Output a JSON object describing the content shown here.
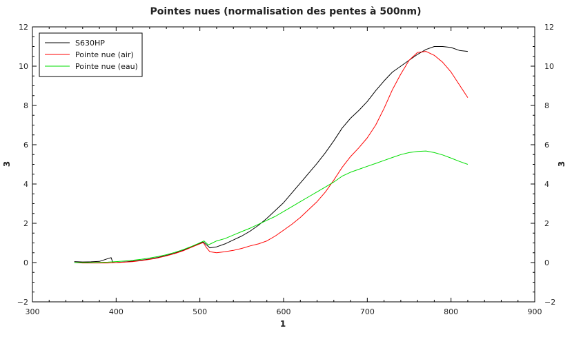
{
  "chart_data": {
    "type": "line",
    "title": "Pointes nues (normalisation des pentes à 500nm)",
    "xlabel": "1",
    "ylabel": "3",
    "ylabel_right": "3",
    "xlim": [
      300,
      900
    ],
    "ylim": [
      -2,
      12
    ],
    "x_ticks": [
      300,
      400,
      500,
      600,
      700,
      800,
      900
    ],
    "y_ticks": [
      -2,
      0,
      2,
      4,
      6,
      8,
      10,
      12
    ],
    "x_tick_labels": [
      "300",
      "400",
      "500",
      "600",
      "700",
      "800",
      "900"
    ],
    "y_tick_labels": [
      "−2",
      "0",
      "2",
      "4",
      "6",
      "8",
      "10",
      "12"
    ],
    "grid": false,
    "legend_position": "top-left",
    "series": [
      {
        "name": "S630HP",
        "color": "#000000",
        "points": [
          [
            350,
            0.05
          ],
          [
            360,
            0.03
          ],
          [
            370,
            0.04
          ],
          [
            380,
            0.06
          ],
          [
            390,
            0.2
          ],
          [
            394,
            0.25
          ],
          [
            396,
            0.0
          ],
          [
            400,
            0.0
          ],
          [
            410,
            0.03
          ],
          [
            420,
            0.07
          ],
          [
            430,
            0.12
          ],
          [
            440,
            0.18
          ],
          [
            450,
            0.26
          ],
          [
            460,
            0.36
          ],
          [
            470,
            0.48
          ],
          [
            480,
            0.62
          ],
          [
            490,
            0.8
          ],
          [
            498,
            0.95
          ],
          [
            504,
            1.05
          ],
          [
            508,
            0.9
          ],
          [
            512,
            0.75
          ],
          [
            520,
            0.8
          ],
          [
            530,
            0.95
          ],
          [
            540,
            1.15
          ],
          [
            550,
            1.35
          ],
          [
            560,
            1.6
          ],
          [
            570,
            1.9
          ],
          [
            580,
            2.25
          ],
          [
            590,
            2.65
          ],
          [
            600,
            3.05
          ],
          [
            610,
            3.55
          ],
          [
            620,
            4.05
          ],
          [
            630,
            4.55
          ],
          [
            640,
            5.05
          ],
          [
            650,
            5.6
          ],
          [
            660,
            6.2
          ],
          [
            670,
            6.85
          ],
          [
            680,
            7.35
          ],
          [
            690,
            7.75
          ],
          [
            700,
            8.2
          ],
          [
            710,
            8.75
          ],
          [
            720,
            9.25
          ],
          [
            730,
            9.7
          ],
          [
            740,
            10.0
          ],
          [
            750,
            10.3
          ],
          [
            760,
            10.6
          ],
          [
            770,
            10.85
          ],
          [
            780,
            11.0
          ],
          [
            790,
            11.0
          ],
          [
            800,
            10.95
          ],
          [
            810,
            10.8
          ],
          [
            820,
            10.75
          ]
        ]
      },
      {
        "name": "Pointe nue (air)",
        "color": "#ff0000",
        "points": [
          [
            350,
            0.0
          ],
          [
            360,
            -0.02
          ],
          [
            370,
            -0.02
          ],
          [
            380,
            -0.02
          ],
          [
            390,
            -0.02
          ],
          [
            400,
            0.0
          ],
          [
            410,
            0.02
          ],
          [
            420,
            0.05
          ],
          [
            430,
            0.1
          ],
          [
            440,
            0.16
          ],
          [
            450,
            0.24
          ],
          [
            460,
            0.34
          ],
          [
            470,
            0.46
          ],
          [
            480,
            0.6
          ],
          [
            490,
            0.78
          ],
          [
            498,
            0.92
          ],
          [
            504,
            1.02
          ],
          [
            508,
            0.75
          ],
          [
            512,
            0.55
          ],
          [
            520,
            0.5
          ],
          [
            530,
            0.55
          ],
          [
            540,
            0.62
          ],
          [
            550,
            0.72
          ],
          [
            560,
            0.85
          ],
          [
            570,
            0.95
          ],
          [
            580,
            1.1
          ],
          [
            590,
            1.35
          ],
          [
            600,
            1.65
          ],
          [
            610,
            1.95
          ],
          [
            620,
            2.3
          ],
          [
            630,
            2.7
          ],
          [
            640,
            3.1
          ],
          [
            650,
            3.6
          ],
          [
            660,
            4.2
          ],
          [
            670,
            4.85
          ],
          [
            680,
            5.4
          ],
          [
            690,
            5.85
          ],
          [
            700,
            6.35
          ],
          [
            710,
            7.0
          ],
          [
            720,
            7.85
          ],
          [
            730,
            8.8
          ],
          [
            740,
            9.6
          ],
          [
            750,
            10.3
          ],
          [
            760,
            10.7
          ],
          [
            770,
            10.75
          ],
          [
            780,
            10.55
          ],
          [
            790,
            10.2
          ],
          [
            800,
            9.7
          ],
          [
            810,
            9.05
          ],
          [
            820,
            8.4
          ]
        ]
      },
      {
        "name": "Pointe nue (eau)",
        "color": "#00dd00",
        "points": [
          [
            350,
            0.0
          ],
          [
            360,
            0.0
          ],
          [
            370,
            0.0
          ],
          [
            380,
            0.01
          ],
          [
            390,
            0.02
          ],
          [
            400,
            0.05
          ],
          [
            410,
            0.08
          ],
          [
            420,
            0.12
          ],
          [
            430,
            0.17
          ],
          [
            440,
            0.23
          ],
          [
            450,
            0.31
          ],
          [
            460,
            0.4
          ],
          [
            470,
            0.52
          ],
          [
            480,
            0.66
          ],
          [
            490,
            0.82
          ],
          [
            498,
            0.97
          ],
          [
            505,
            1.1
          ],
          [
            510,
            0.9
          ],
          [
            515,
            1.0
          ],
          [
            520,
            1.1
          ],
          [
            530,
            1.22
          ],
          [
            540,
            1.4
          ],
          [
            550,
            1.58
          ],
          [
            560,
            1.75
          ],
          [
            570,
            1.95
          ],
          [
            580,
            2.15
          ],
          [
            590,
            2.35
          ],
          [
            600,
            2.6
          ],
          [
            610,
            2.85
          ],
          [
            620,
            3.1
          ],
          [
            630,
            3.35
          ],
          [
            640,
            3.6
          ],
          [
            650,
            3.85
          ],
          [
            660,
            4.1
          ],
          [
            670,
            4.4
          ],
          [
            680,
            4.6
          ],
          [
            690,
            4.75
          ],
          [
            700,
            4.9
          ],
          [
            710,
            5.05
          ],
          [
            720,
            5.2
          ],
          [
            730,
            5.35
          ],
          [
            740,
            5.5
          ],
          [
            750,
            5.6
          ],
          [
            760,
            5.66
          ],
          [
            770,
            5.68
          ],
          [
            780,
            5.6
          ],
          [
            790,
            5.48
          ],
          [
            800,
            5.32
          ],
          [
            810,
            5.15
          ],
          [
            820,
            5.0
          ]
        ]
      }
    ]
  }
}
